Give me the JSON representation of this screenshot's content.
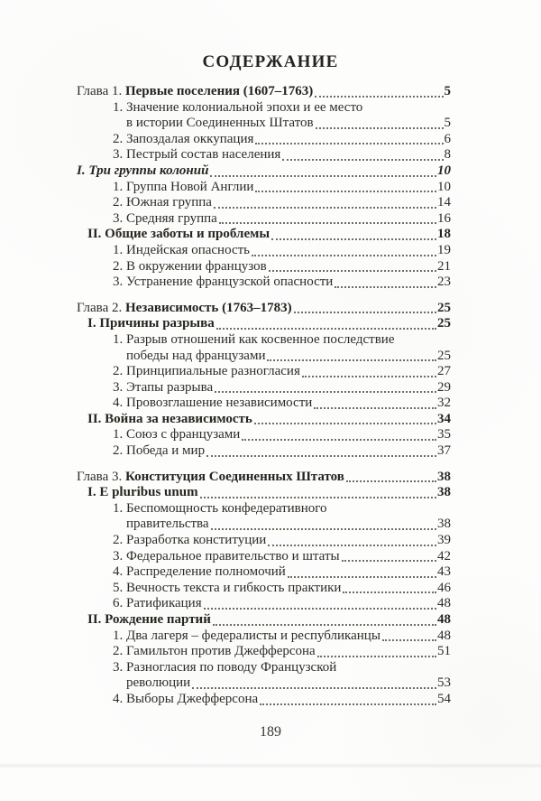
{
  "document": {
    "title": "СОДЕРЖАНИЕ",
    "folio": "189"
  },
  "toc_entries": [
    {
      "type": "chapter",
      "prefix": "Глава 1.",
      "title": "Первые поселения (1607–1763)",
      "page": "5"
    },
    {
      "type": "item",
      "lines": [
        "1. Значение колониальной эпохи и ее место",
        "в истории Соединенных Штатов"
      ],
      "page": "5"
    },
    {
      "type": "item",
      "lines": [
        "2. Запоздалая оккупация"
      ],
      "page": "6"
    },
    {
      "type": "item",
      "lines": [
        "3. Пестрый состав населения"
      ],
      "page": "8"
    },
    {
      "type": "section_italic",
      "lines": [
        "I. Три группы колоний"
      ],
      "page": "10"
    },
    {
      "type": "item",
      "lines": [
        "1. Группа Новой Англии"
      ],
      "page": "10"
    },
    {
      "type": "item",
      "lines": [
        "2. Южная группа"
      ],
      "page": "14"
    },
    {
      "type": "item",
      "lines": [
        "3. Средняя группа"
      ],
      "page": "16"
    },
    {
      "type": "section",
      "lines": [
        "II. Общие заботы и проблемы"
      ],
      "page": "18"
    },
    {
      "type": "item",
      "lines": [
        "1. Индейская опасность"
      ],
      "page": "19"
    },
    {
      "type": "item",
      "lines": [
        "2. В окружении французов"
      ],
      "page": "21"
    },
    {
      "type": "item",
      "lines": [
        "3. Устранение французской опасности"
      ],
      "page": "23"
    },
    {
      "type": "chapter",
      "prefix": "Глава 2.",
      "title": "Независимость (1763–1783)",
      "page": "25",
      "gap_before": true
    },
    {
      "type": "section",
      "lines": [
        "I. Причины разрыва"
      ],
      "page": "25"
    },
    {
      "type": "item",
      "lines": [
        "1. Разрыв отношений как косвенное последствие",
        "победы над французами"
      ],
      "page": "25"
    },
    {
      "type": "item",
      "lines": [
        "2. Принципиальные разногласия"
      ],
      "page": "27"
    },
    {
      "type": "item",
      "lines": [
        "3. Этапы разрыва"
      ],
      "page": "29"
    },
    {
      "type": "item",
      "lines": [
        "4. Провозглашение независимости"
      ],
      "page": "32"
    },
    {
      "type": "section",
      "lines": [
        "II. Война за независимость"
      ],
      "page": "34"
    },
    {
      "type": "item",
      "lines": [
        "1. Союз с французами"
      ],
      "page": "35"
    },
    {
      "type": "item",
      "lines": [
        "2. Победа и мир"
      ],
      "page": "37"
    },
    {
      "type": "chapter",
      "prefix": "Глава 3.",
      "title": "Конституция Соединенных Штатов",
      "page": "38",
      "gap_before": true
    },
    {
      "type": "section",
      "lines": [
        "I. E pluribus unum"
      ],
      "page": "38"
    },
    {
      "type": "item",
      "lines": [
        "1. Беспомощность конфедеративного",
        "правительства"
      ],
      "page": "38"
    },
    {
      "type": "item",
      "lines": [
        "2. Разработка конституции"
      ],
      "page": "39"
    },
    {
      "type": "item",
      "lines": [
        "3. Федеральное правительство и штаты"
      ],
      "page": "42"
    },
    {
      "type": "item",
      "lines": [
        "4. Распределение полномочий"
      ],
      "page": "43"
    },
    {
      "type": "item",
      "lines": [
        "5. Вечность текста и гибкость практики"
      ],
      "page": "46"
    },
    {
      "type": "item",
      "lines": [
        "6. Ратификация"
      ],
      "page": "48"
    },
    {
      "type": "section",
      "lines": [
        "II. Рождение партий"
      ],
      "page": "48"
    },
    {
      "type": "item",
      "lines": [
        "1. Два лагеря – федералисты и республиканцы"
      ],
      "page": "48"
    },
    {
      "type": "item",
      "lines": [
        "2. Гамильтон против Джефферсона"
      ],
      "page": "51"
    },
    {
      "type": "item",
      "lines": [
        "3. Разногласия по поводу Французской",
        "революции"
      ],
      "page": "53"
    },
    {
      "type": "item",
      "lines": [
        "4. Выборы Джефферсона"
      ],
      "page": "54"
    }
  ]
}
